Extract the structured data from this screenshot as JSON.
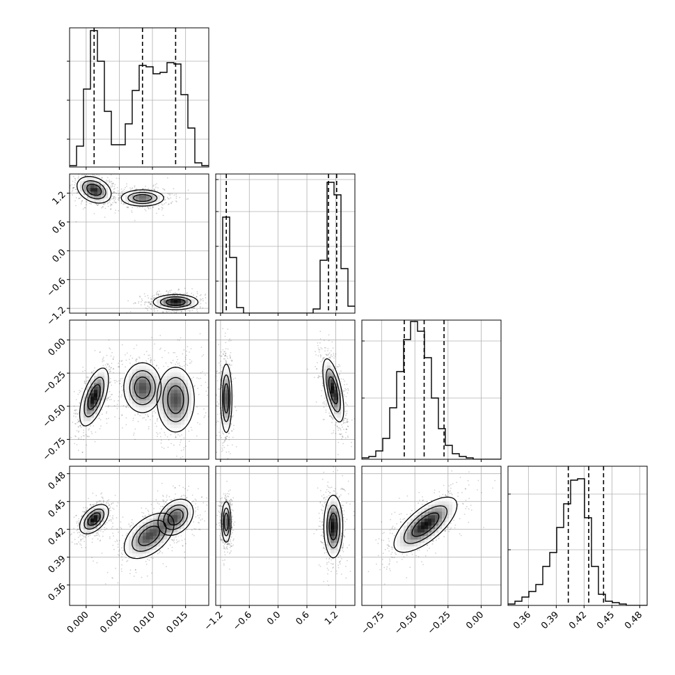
{
  "chart_data": {
    "type": "corner",
    "title": "",
    "variables": [
      {
        "label": "",
        "range": [
          -0.0025,
          0.0185
        ],
        "ticks": [
          0.0,
          0.005,
          0.01,
          0.015
        ],
        "tick_labels": [
          "0.000",
          "0.005",
          "0.010",
          "0.015"
        ],
        "quantiles": [
          0.0012,
          0.0085,
          0.0135
        ],
        "histogram": {
          "bin_start": -0.0025,
          "bin_width": 0.00105,
          "counts": [
            0.01,
            0.15,
            0.56,
            0.98,
            0.76,
            0.4,
            0.16,
            0.16,
            0.31,
            0.55,
            0.73,
            0.72,
            0.67,
            0.68,
            0.75,
            0.74,
            0.52,
            0.28,
            0.03,
            0.01
          ]
        },
        "hist_yticks": [
          0.2,
          0.48,
          0.76
        ]
      },
      {
        "label": "",
        "range": [
          -1.3,
          1.6
        ],
        "ticks": [
          -1.2,
          -0.6,
          0.0,
          0.6,
          1.2
        ],
        "tick_labels": [
          "−1.2",
          "−0.6",
          "0.0",
          "0.6",
          "1.2"
        ],
        "quantiles": [
          -1.08,
          1.05,
          1.22
        ],
        "histogram": {
          "bin_start": -1.3,
          "bin_width": 0.145,
          "counts": [
            0,
            0.69,
            0.4,
            0.04,
            0,
            0,
            0,
            0,
            0,
            0,
            0,
            0,
            0,
            0,
            0.03,
            0.38,
            0.94,
            0.85,
            0.32,
            0.05
          ]
        },
        "hist_yticks": [
          0.23,
          0.48,
          0.73,
          0.96
        ]
      },
      {
        "label": "",
        "range": [
          -0.9,
          0.15
        ],
        "ticks": [
          -0.75,
          -0.5,
          -0.25,
          0.0
        ],
        "tick_labels": [
          "−0.75",
          "−0.50",
          "−0.25",
          "0.00"
        ],
        "quantiles": [
          -0.58,
          -0.43,
          -0.28
        ],
        "histogram": {
          "bin_start": -0.9,
          "bin_width": 0.0525,
          "counts": [
            0.01,
            0.02,
            0.06,
            0.15,
            0.37,
            0.63,
            0.86,
            0.99,
            0.92,
            0.73,
            0.44,
            0.22,
            0.1,
            0.04,
            0.02,
            0.01,
            0,
            0,
            0,
            0
          ]
        },
        "hist_yticks": [
          0.44,
          0.85
        ]
      },
      {
        "label": "",
        "range": [
          0.338,
          0.488
        ],
        "ticks": [
          0.36,
          0.39,
          0.42,
          0.45,
          0.48
        ],
        "tick_labels": [
          "0.36",
          "0.39",
          "0.42",
          "0.45",
          "0.48"
        ],
        "quantiles": [
          0.403,
          0.425,
          0.441
        ],
        "histogram": {
          "bin_start": 0.338,
          "bin_width": 0.0075,
          "counts": [
            0.01,
            0.03,
            0.06,
            0.1,
            0.15,
            0.28,
            0.38,
            0.56,
            0.73,
            0.9,
            0.91,
            0.63,
            0.28,
            0.08,
            0.03,
            0.02,
            0.01,
            0,
            0,
            0
          ]
        },
        "hist_yticks": [
          0.4,
          0.8
        ]
      }
    ],
    "pairs": [
      {
        "x": 0,
        "y": 1,
        "modes": [
          {
            "center": [
              0.0012,
              1.27
            ],
            "sd": [
              0.0013,
              0.14
            ],
            "rho": -0.3,
            "weight": 1.0
          },
          {
            "center": [
              0.0085,
              1.1
            ],
            "sd": [
              0.0017,
              0.09
            ],
            "rho": 0.0,
            "weight": 0.8
          },
          {
            "center": [
              0.0135,
              -1.07
            ],
            "sd": [
              0.0017,
              0.08
            ],
            "rho": 0.0,
            "weight": 1.1
          }
        ]
      },
      {
        "x": 0,
        "y": 2,
        "modes": [
          {
            "center": [
              0.0012,
              -0.43
            ],
            "sd": [
              0.0011,
              0.11
            ],
            "rho": 0.6,
            "weight": 1.0
          },
          {
            "center": [
              0.0085,
              -0.36
            ],
            "sd": [
              0.0015,
              0.1
            ],
            "rho": 0.0,
            "weight": 0.8
          },
          {
            "center": [
              0.0135,
              -0.45
            ],
            "sd": [
              0.0015,
              0.13
            ],
            "rho": 0.0,
            "weight": 0.8
          }
        ]
      },
      {
        "x": 1,
        "y": 2,
        "modes": [
          {
            "center": [
              -1.08,
              -0.44
            ],
            "sd": [
              0.06,
              0.13
            ],
            "rho": 0.0,
            "weight": 1.0
          },
          {
            "center": [
              1.15,
              -0.38
            ],
            "sd": [
              0.11,
              0.12
            ],
            "rho": -0.6,
            "weight": 1.1
          }
        ]
      },
      {
        "x": 0,
        "y": 3,
        "modes": [
          {
            "center": [
              0.0012,
              0.431
            ],
            "sd": [
              0.0011,
              0.008
            ],
            "rho": 0.5,
            "weight": 1.0
          },
          {
            "center": [
              0.0095,
              0.413
            ],
            "sd": [
              0.002,
              0.013
            ],
            "rho": 0.5,
            "weight": 0.8
          },
          {
            "center": [
              0.0135,
              0.433
            ],
            "sd": [
              0.0015,
              0.011
            ],
            "rho": 0.3,
            "weight": 0.7
          }
        ]
      },
      {
        "x": 1,
        "y": 3,
        "modes": [
          {
            "center": [
              -1.08,
              0.428
            ],
            "sd": [
              0.05,
              0.011
            ],
            "rho": 0.0,
            "weight": 1.0
          },
          {
            "center": [
              1.15,
              0.423
            ],
            "sd": [
              0.1,
              0.017
            ],
            "rho": 0.0,
            "weight": 1.1
          }
        ]
      },
      {
        "x": 2,
        "y": 3,
        "modes": [
          {
            "center": [
              -0.42,
              0.425
            ],
            "sd": [
              0.12,
              0.015
            ],
            "rho": 0.7,
            "weight": 1.0
          }
        ]
      }
    ],
    "grid": true,
    "quantile_lines": "dashed",
    "colors": {
      "ink": "#000000",
      "grid": "#b0b0b0",
      "density_dark": "#000000",
      "density_light": "#ffffff"
    }
  }
}
